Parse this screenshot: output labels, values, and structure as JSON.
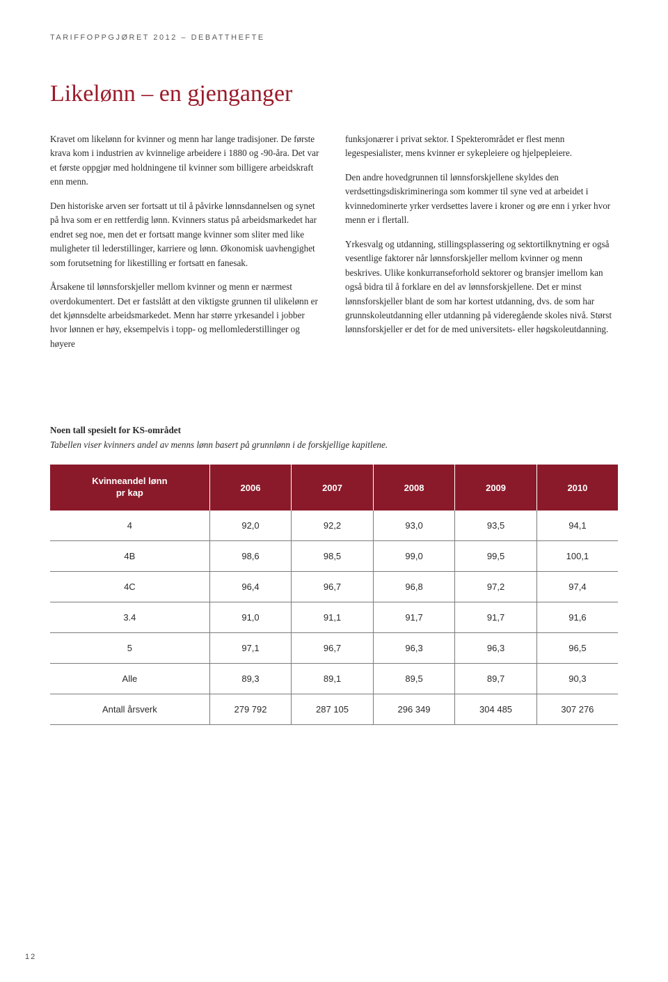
{
  "header_kicker": "TARIFFOPPGJØRET 2012 – DEBATTHEFTE",
  "title": "Likelønn – en gjenganger",
  "left_col": {
    "p1": "Kravet om likelønn for kvinner og menn har lange tradisjoner. De første krava kom i industrien av kvinnelige arbeidere i 1880 og -90-åra. Det var et første oppgjør med holdningene til kvinner som billigere arbeidskraft enn menn.",
    "p2": "Den historiske arven ser fortsatt ut til å påvirke lønnsdannelsen og synet på hva som er en rettferdig lønn. Kvinners status på arbeidsmarkedet har endret seg noe, men det er fortsatt mange kvinner som sliter med like muligheter til lederstillinger, karriere og lønn. Økonomisk uavhengighet som forutsetning for likestilling er fortsatt en fanesak.",
    "p3": "Årsakene til lønnsforskjeller mellom kvinner og menn er nærmest overdokumentert. Det er fastslått at den viktigste grunnen til ulikelønn er det kjønnsdelte arbeidsmarkedet. Menn har større yrkesandel i jobber hvor lønnen er høy, eksempelvis i topp- og mellomlederstillinger og høyere"
  },
  "right_col": {
    "p1": "funksjonærer i privat sektor. I Spekterområdet er flest menn legespesialister, mens kvinner er sykepleiere og hjelpepleiere.",
    "p2": "Den andre hovedgrunnen til lønnsforskjellene skyldes den verdsettingsdiskrimineringa som kommer til syne ved at arbeidet i kvinnedominerte yrker verdsettes lavere i kroner og øre enn i yrker hvor menn er i flertall.",
    "p3": "Yrkesvalg og utdanning, stillingsplassering og sektortilknytning er også vesentlige faktorer når lønnsforskjeller mellom kvinner og menn beskrives. Ulike konkurranseforhold sektorer og bransjer imellom kan også bidra til å forklare en del av lønnsforskjellene. Det er minst lønnsforskjeller blant de som har kortest utdanning, dvs. de som har grunnskoleutdanning eller utdanning på videregående skoles nivå. Størst lønnsforskjeller er det for de med universitets- eller høgskoleutdanning."
  },
  "table_intro_bold": "Noen tall spesielt for KS-området",
  "table_intro_italic": "Tabellen viser kvinners andel av menns lønn basert på grunnlønn i de forskjellige kapitlene.",
  "table": {
    "header_bg": "#8a1a2a",
    "header_fg": "#ffffff",
    "border_color": "#7a7a7a",
    "col0_header_line1": "Kvinneandel lønn",
    "col0_header_line2": "pr kap",
    "year_headers": [
      "2006",
      "2007",
      "2008",
      "2009",
      "2010"
    ],
    "rows": [
      {
        "label": "4",
        "vals": [
          "92,0",
          "92,2",
          "93,0",
          "93,5",
          "94,1"
        ]
      },
      {
        "label": "4B",
        "vals": [
          "98,6",
          "98,5",
          "99,0",
          "99,5",
          "100,1"
        ]
      },
      {
        "label": "4C",
        "vals": [
          "96,4",
          "96,7",
          "96,8",
          "97,2",
          "97,4"
        ]
      },
      {
        "label": "3.4",
        "vals": [
          "91,0",
          "91,1",
          "91,7",
          "91,7",
          "91,6"
        ]
      },
      {
        "label": "5",
        "vals": [
          "97,1",
          "96,7",
          "96,3",
          "96,3",
          "96,5"
        ]
      },
      {
        "label": "Alle",
        "vals": [
          "89,3",
          "89,1",
          "89,5",
          "89,7",
          "90,3"
        ]
      },
      {
        "label": "Antall årsverk",
        "vals": [
          "279 792",
          "287 105",
          "296 349",
          "304 485",
          "307 276"
        ]
      }
    ]
  },
  "page_number": "12"
}
